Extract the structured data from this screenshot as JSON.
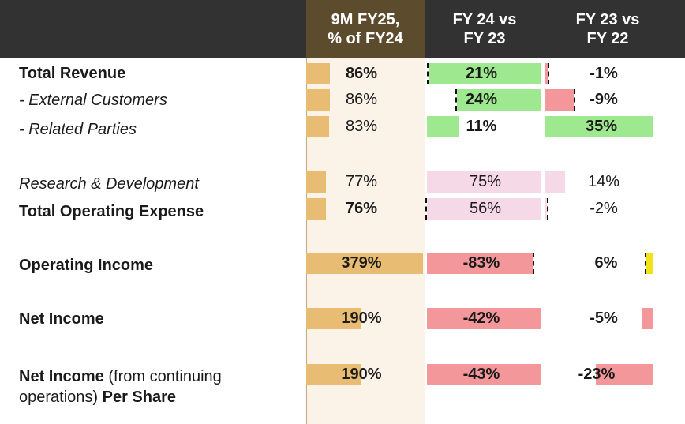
{
  "header": {
    "col1": [
      "9M FY25,",
      "% of FY24"
    ],
    "col2": [
      "FY 24 vs",
      "FY 23"
    ],
    "col3": [
      "FY 23 vs",
      "FY 22"
    ]
  },
  "colors": {
    "header_bg": "#333232",
    "col1_header_bg": "#5c4b2d",
    "col1_bar": "#e8bd73",
    "col1_bg": "#fbf3e8",
    "growth_positive": "#9ee88f",
    "growth_negative": "#f4979a",
    "growth_neutral": "#f6d9e6",
    "highlight": "#f2e21a"
  },
  "chart_data": {
    "type": "table",
    "columns": [
      "9M FY25, % of FY24",
      "FY 24 vs FY 23",
      "FY 23 vs FY 22"
    ],
    "rows": [
      {
        "label": [
          "Total Revenue"
        ],
        "style": "bold",
        "values": [
          "86%",
          "21%",
          "-1%"
        ],
        "numeric": [
          86,
          21,
          -1
        ],
        "bold_values": true
      },
      {
        "label": [
          "- External Customers"
        ],
        "style": "italic",
        "values": [
          "86%",
          "24%",
          "-9%"
        ],
        "numeric": [
          86,
          24,
          -9
        ],
        "bold_values": false
      },
      {
        "label": [
          "- Related Parties"
        ],
        "style": "italic",
        "values": [
          "83%",
          "11%",
          "35%"
        ],
        "numeric": [
          83,
          11,
          35
        ],
        "bold_values": false
      },
      {
        "label": [
          "Research & Development"
        ],
        "style": "italic",
        "values": [
          "77%",
          "75%",
          "14%"
        ],
        "numeric": [
          77,
          75,
          14
        ],
        "bold_values": false
      },
      {
        "label": [
          "Total Operating Expense"
        ],
        "style": "bold",
        "values": [
          "76%",
          "56%",
          "-2%"
        ],
        "numeric": [
          76,
          56,
          -2
        ],
        "bold_values": true
      },
      {
        "label": [
          "Operating Income"
        ],
        "style": "bold",
        "values": [
          "379%",
          "-83%",
          "6%"
        ],
        "numeric": [
          379,
          -83,
          6
        ],
        "bold_values": true
      },
      {
        "label": [
          "Net Income"
        ],
        "style": "bold",
        "values": [
          "190%",
          "-42%",
          "-5%"
        ],
        "numeric": [
          190,
          -42,
          -5
        ],
        "bold_values": true
      },
      {
        "label": [
          "Net Income",
          " (from continuing",
          "operations) ",
          "Per Share"
        ],
        "style": "mixed",
        "values": [
          "190%",
          "-43%",
          "-23%"
        ],
        "numeric": [
          190,
          -43,
          -23
        ],
        "bold_values": true
      }
    ]
  }
}
